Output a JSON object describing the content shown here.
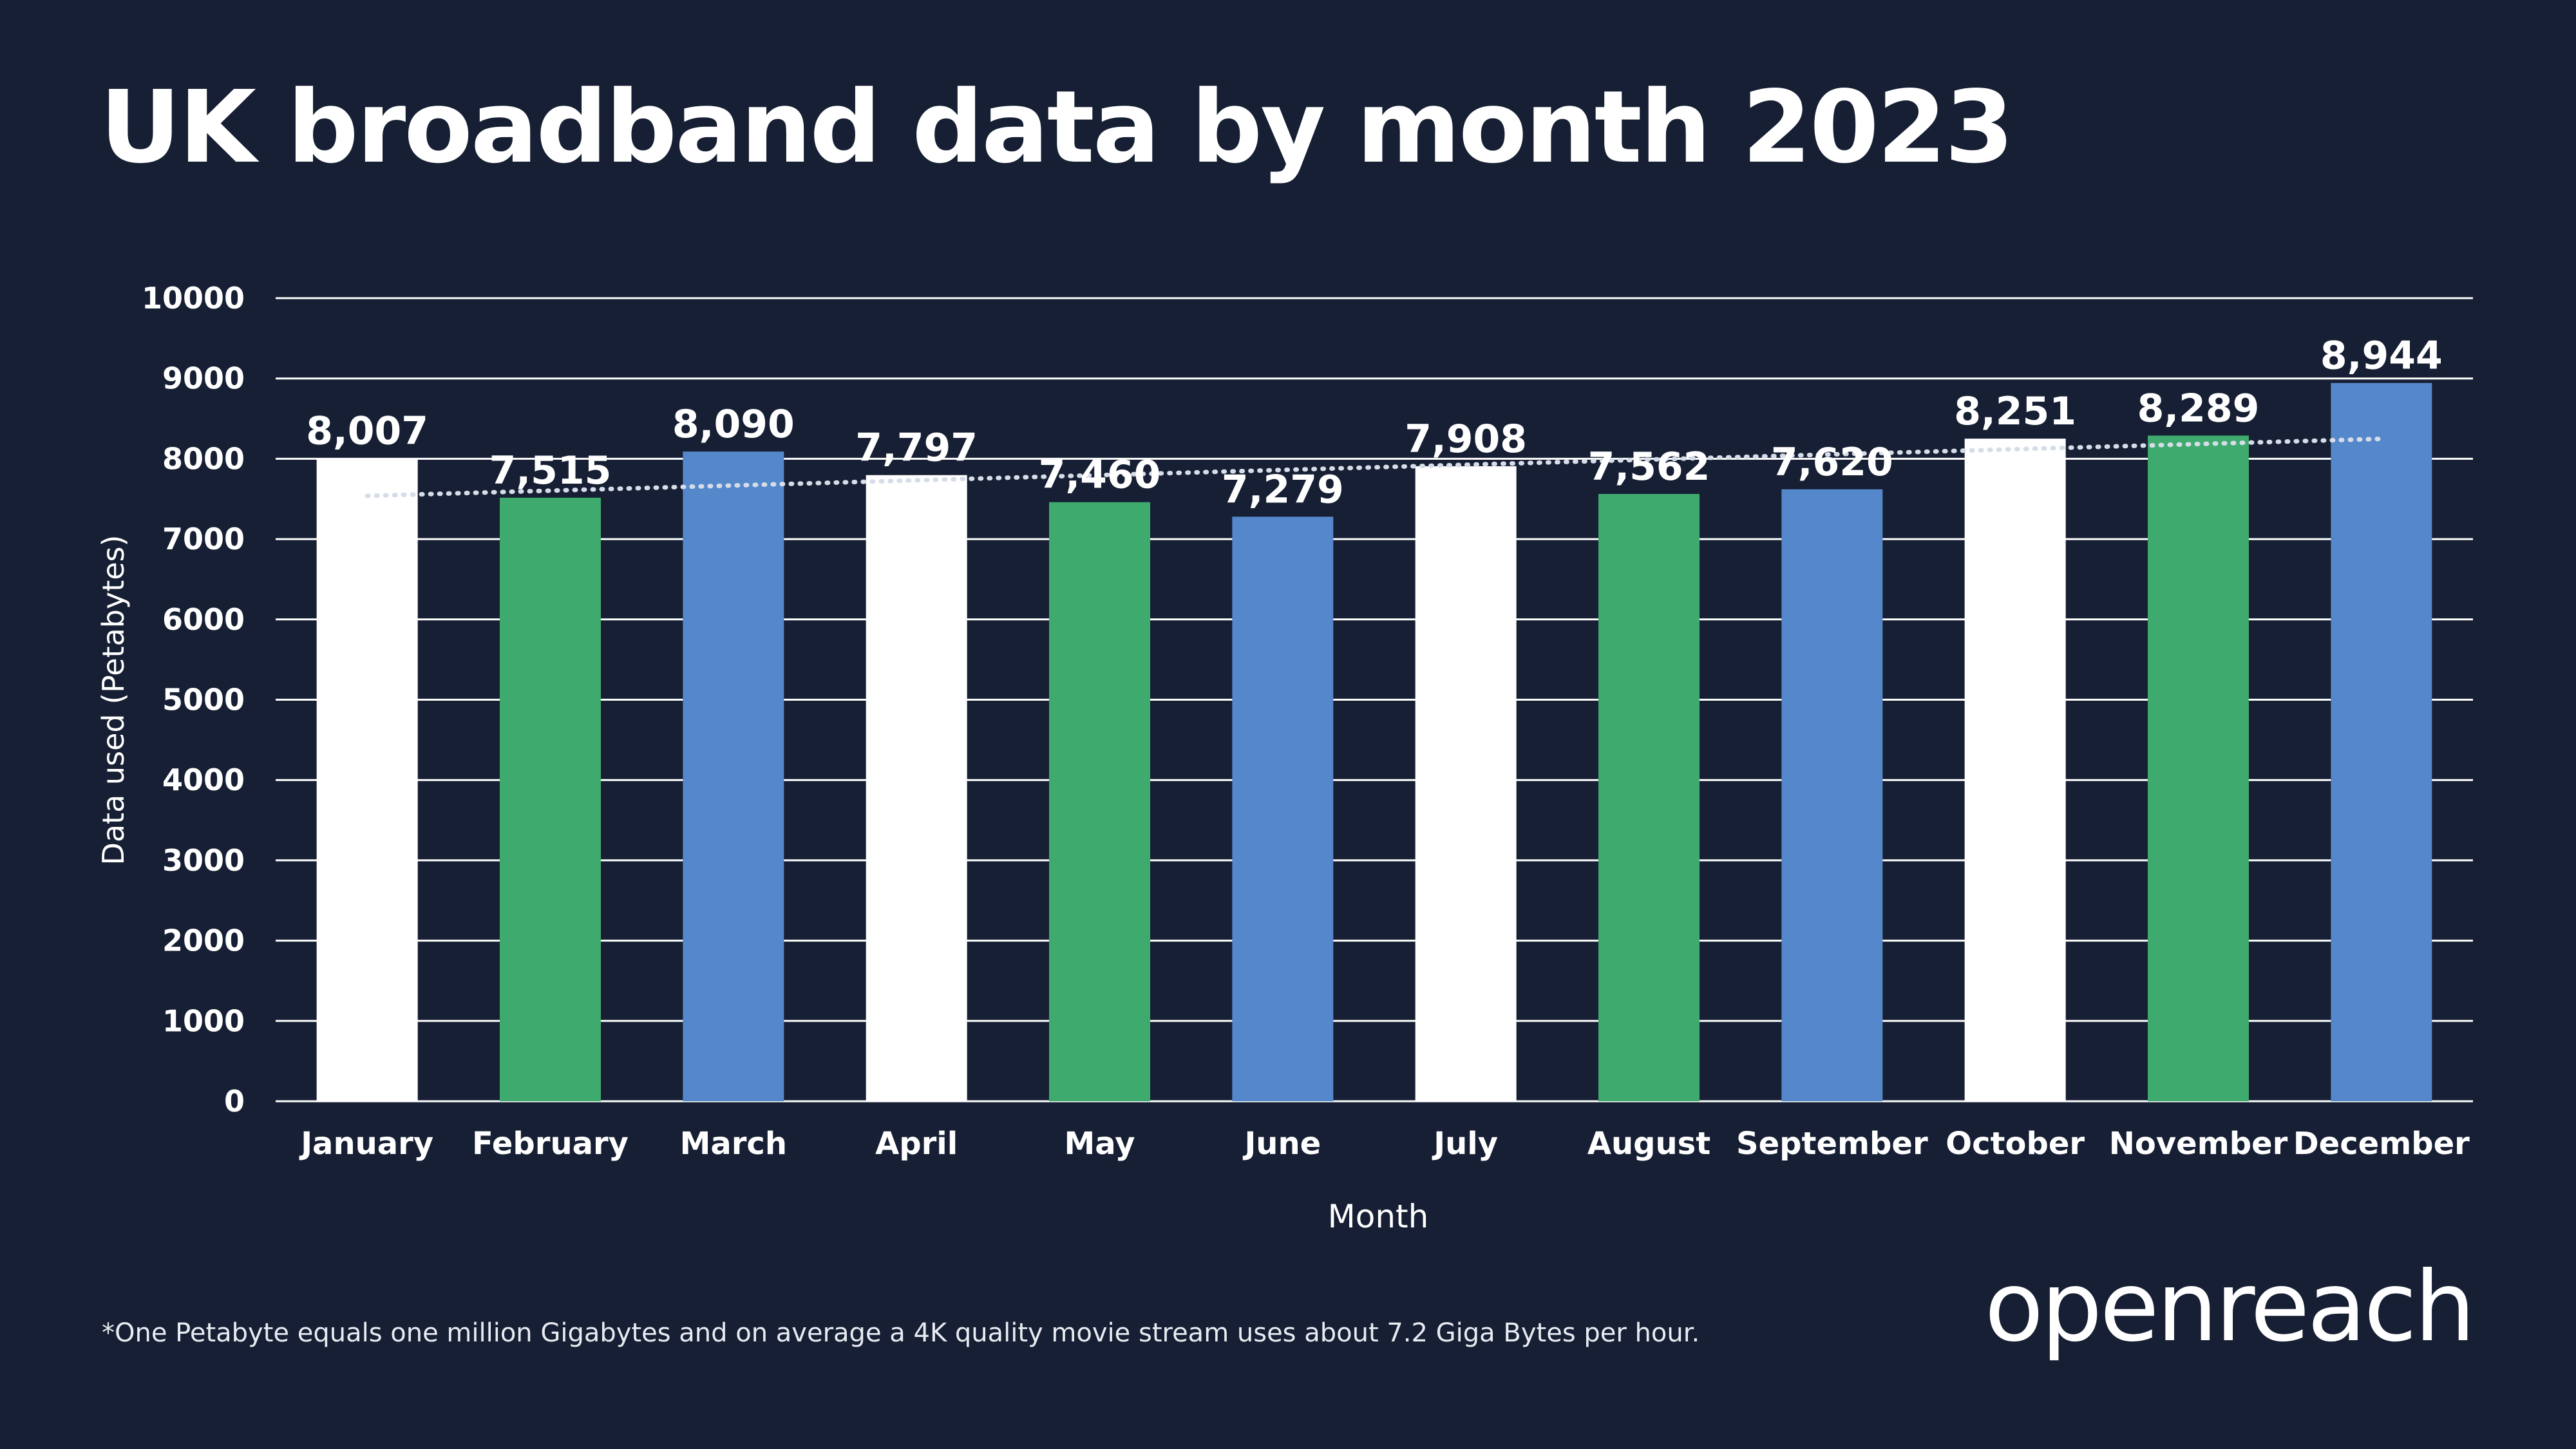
{
  "title": "UK broadband data by month 2023",
  "footnote": "*One Petabyte equals one million Gigabytes and on average a 4K quality movie stream uses about 7.2 Giga Bytes per hour.",
  "logo_text": "openreach",
  "colors": {
    "background": "#161f33",
    "white_bar": "#ffffff",
    "green_bar": "#3faa6d",
    "blue_bar": "#5587cb",
    "gridline": "#ffffff",
    "trendline": "#d6dde9"
  },
  "chart_data": {
    "type": "bar",
    "title": "UK broadband data by month 2023",
    "xlabel": "Month",
    "ylabel": "Data used (Petabytes)",
    "ylim": [
      0,
      10000
    ],
    "yticks": [
      "0",
      "1000",
      "2000",
      "3000",
      "4000",
      "5000",
      "6000",
      "7000",
      "8000",
      "9000",
      "10000"
    ],
    "categories": [
      "January",
      "February",
      "March",
      "April",
      "May",
      "June",
      "July",
      "August",
      "September",
      "October",
      "November",
      "December"
    ],
    "values": [
      8007,
      7515,
      8090,
      7797,
      7460,
      7279,
      7908,
      7562,
      7620,
      8251,
      8289,
      8944
    ],
    "data_labels": [
      "8,007",
      "7,515",
      "8,090",
      "7,797",
      "7,460",
      "7,279",
      "7,908",
      "7,562",
      "7,620",
      "8,251",
      "8,289",
      "8,944"
    ],
    "bar_colors": [
      "#ffffff",
      "#3faa6d",
      "#5587cb",
      "#ffffff",
      "#3faa6d",
      "#5587cb",
      "#ffffff",
      "#3faa6d",
      "#5587cb",
      "#ffffff",
      "#3faa6d",
      "#5587cb"
    ],
    "trendline": {
      "type": "linear",
      "style": "dotted"
    },
    "grid": true,
    "legend": "none"
  }
}
